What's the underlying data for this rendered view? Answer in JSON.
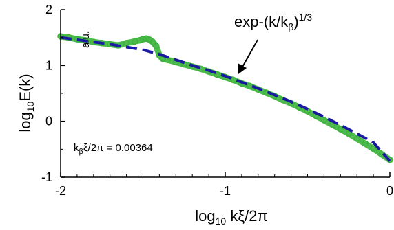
{
  "chart_data": {
    "type": "scatter",
    "xlim": [
      -2,
      0
    ],
    "ylim": [
      -1,
      2
    ],
    "x_ticks": [
      -2,
      -1,
      0
    ],
    "x_tick_labels": [
      "-2",
      "-1",
      "0"
    ],
    "y_ticks": [
      -1,
      0,
      1,
      2
    ],
    "y_tick_labels": [
      "-1",
      "0",
      "1",
      "2"
    ],
    "xlabel": {
      "main": "log",
      "sub": "10",
      "rest": " kξ/2π"
    },
    "ylabel": {
      "main": "log",
      "sub": "10",
      "rest": "E(k)"
    },
    "units_label": "a.u.",
    "fit_label": {
      "prefix": "exp-(k/k",
      "sub": "β",
      "close": ")",
      "sup": "1/3"
    },
    "param_label": {
      "prefix": "k",
      "sub": "β",
      "rest": "ξ/2π = 0.00364"
    },
    "grid": false,
    "series": [
      {
        "style": "circles",
        "color": "#3cb43c",
        "x": [
          -2.0,
          -1.95,
          -1.9,
          -1.85,
          -1.8,
          -1.75,
          -1.7,
          -1.65,
          -1.6,
          -1.55,
          -1.52,
          -1.5,
          -1.48,
          -1.46,
          -1.44,
          -1.42,
          -1.4,
          -1.38,
          -1.35,
          -1.3,
          -1.25,
          -1.2,
          -1.15,
          -1.1,
          -1.05,
          -1.0,
          -0.95,
          -0.9,
          -0.85,
          -0.8,
          -0.75,
          -0.7,
          -0.65,
          -0.6,
          -0.55,
          -0.5,
          -0.45,
          -0.4,
          -0.35,
          -0.3,
          -0.25,
          -0.2,
          -0.15,
          -0.1,
          -0.05,
          0.0
        ],
        "y": [
          1.52,
          1.5,
          1.47,
          1.45,
          1.42,
          1.4,
          1.38,
          1.36,
          1.4,
          1.43,
          1.45,
          1.47,
          1.48,
          1.46,
          1.42,
          1.35,
          1.18,
          1.12,
          1.1,
          1.06,
          1.02,
          0.98,
          0.94,
          0.89,
          0.84,
          0.79,
          0.74,
          0.68,
          0.63,
          0.57,
          0.51,
          0.45,
          0.38,
          0.32,
          0.25,
          0.18,
          0.1,
          0.02,
          -0.06,
          -0.14,
          -0.22,
          -0.31,
          -0.4,
          -0.49,
          -0.59,
          -0.69
        ]
      },
      {
        "style": "dashed-line",
        "color": "#1a1aa0",
        "x": [
          -2.0,
          -1.9,
          -1.8,
          -1.7,
          -1.6,
          -1.5,
          -1.4,
          -1.3,
          -1.2,
          -1.1,
          -1.0,
          -0.9,
          -0.8,
          -0.7,
          -0.6,
          -0.5,
          -0.4,
          -0.3,
          -0.2,
          -0.1,
          0.0
        ],
        "y": [
          1.5,
          1.46,
          1.42,
          1.38,
          1.33,
          1.28,
          1.2,
          1.1,
          1.0,
          0.91,
          0.81,
          0.7,
          0.59,
          0.47,
          0.35,
          0.22,
          0.08,
          -0.07,
          -0.22,
          -0.38,
          -0.71
        ]
      }
    ],
    "colors": {
      "fit_label": "#1a1aa0",
      "axis": "#000000"
    }
  }
}
